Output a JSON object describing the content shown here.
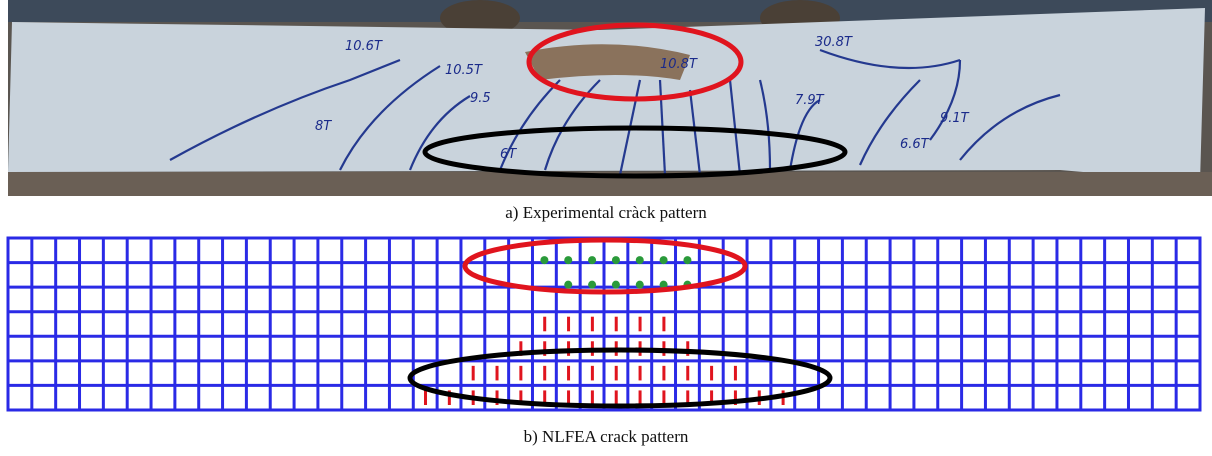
{
  "figure": {
    "panels": [
      {
        "caption": "a) Experimental cràck pattern",
        "load_labels": [
          "10.6T",
          "10.5T",
          "9.5",
          "8T",
          "6T",
          "10.8T",
          "7.9T",
          "9.1T",
          "6.6T",
          "30.8T"
        ]
      },
      {
        "caption": "b) NLFEA crack pattern"
      }
    ]
  }
}
